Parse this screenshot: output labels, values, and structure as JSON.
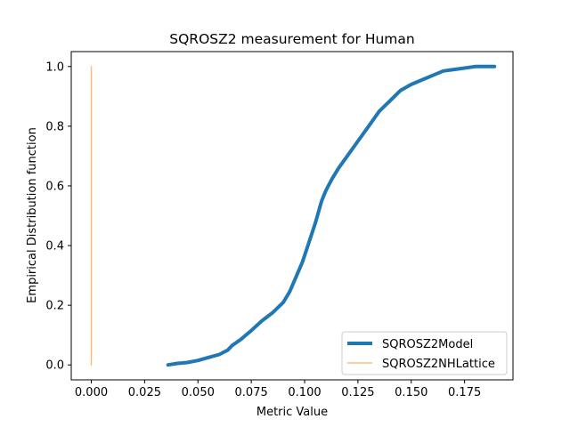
{
  "chart_data": {
    "type": "line",
    "title": "SQROSZ2 measurement for Human",
    "xlabel": "Metric Value",
    "ylabel": "Empirical Distribution function",
    "xlim": [
      -0.0094,
      0.1977
    ],
    "ylim": [
      -0.05,
      1.05
    ],
    "xticks": [
      0.0,
      0.025,
      0.05,
      0.075,
      0.1,
      0.125,
      0.15,
      0.175
    ],
    "xtick_labels": [
      "0.000",
      "0.025",
      "0.050",
      "0.075",
      "0.100",
      "0.125",
      "0.150",
      "0.175"
    ],
    "yticks": [
      0.0,
      0.2,
      0.4,
      0.6,
      0.8,
      1.0
    ],
    "ytick_labels": [
      "0.0",
      "0.2",
      "0.4",
      "0.6",
      "0.8",
      "1.0"
    ],
    "grid": false,
    "legend_position": "lower right",
    "series": [
      {
        "name": "SQROSZ2Model",
        "color": "#1f77b4",
        "x": [
          0.036,
          0.04,
          0.045,
          0.05,
          0.055,
          0.06,
          0.064,
          0.066,
          0.07,
          0.075,
          0.08,
          0.085,
          0.09,
          0.093,
          0.096,
          0.099,
          0.102,
          0.105,
          0.108,
          0.11,
          0.113,
          0.116,
          0.12,
          0.125,
          0.13,
          0.135,
          0.14,
          0.145,
          0.15,
          0.155,
          0.16,
          0.165,
          0.17,
          0.175,
          0.18,
          0.185,
          0.189
        ],
        "y": [
          0.0,
          0.005,
          0.008,
          0.015,
          0.025,
          0.035,
          0.05,
          0.065,
          0.085,
          0.115,
          0.148,
          0.175,
          0.21,
          0.245,
          0.295,
          0.345,
          0.41,
          0.475,
          0.55,
          0.585,
          0.625,
          0.66,
          0.7,
          0.75,
          0.8,
          0.85,
          0.885,
          0.92,
          0.94,
          0.955,
          0.97,
          0.985,
          0.99,
          0.995,
          1.0,
          1.0,
          1.0
        ]
      },
      {
        "name": "SQROSZ2NHLattice",
        "color": "#ffbb78",
        "x": [
          0.0,
          0.0
        ],
        "y": [
          0.0,
          1.0
        ]
      }
    ]
  }
}
